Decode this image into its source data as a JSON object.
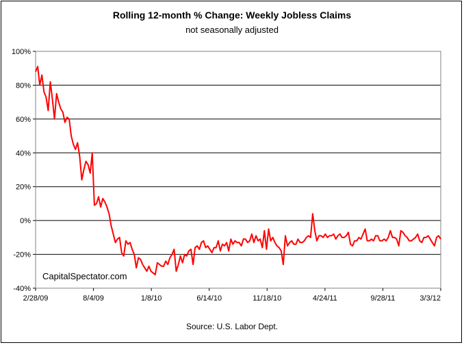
{
  "chart_data": {
    "type": "line",
    "title": "Rolling 12-month %  Change: Weekly Jobless Claims",
    "subtitle": "not seasonally adjusted",
    "source": "Source: U.S. Labor Dept.",
    "watermark": "CapitalSpectator.com",
    "xlabel": "",
    "ylabel": "",
    "ylim": [
      -40,
      100
    ],
    "y_ticks": [
      100,
      80,
      60,
      40,
      20,
      0,
      -20,
      -40
    ],
    "y_tick_labels": [
      "100%",
      "80%",
      "60%",
      "40%",
      "20%",
      "0%",
      "-20%",
      "-40%"
    ],
    "x_tick_labels": [
      "2/28/09",
      "8/4/09",
      "1/8/10",
      "6/14/10",
      "11/18/10",
      "4/24/11",
      "9/28/11",
      "3/3/12"
    ],
    "grid": true,
    "line_color": "#ff0000",
    "series": [
      {
        "values": [
          88,
          91,
          80,
          86,
          76,
          73,
          65,
          82,
          72,
          60,
          75,
          70,
          66,
          64,
          58,
          61,
          60,
          50,
          45,
          42,
          46,
          38,
          24,
          30,
          35,
          33,
          28,
          40,
          9,
          10,
          14,
          8,
          13,
          11,
          8,
          4,
          -3,
          -8,
          -13,
          -11,
          -10,
          -19,
          -21,
          -12,
          -14,
          -13,
          -17,
          -20,
          -28,
          -22,
          -23,
          -26,
          -28,
          -30,
          -27,
          -30,
          -31,
          -32,
          -25,
          -26,
          -27,
          -27,
          -24,
          -26,
          -22,
          -20,
          -17,
          -30,
          -26,
          -21,
          -25,
          -20,
          -21,
          -18,
          -17,
          -26,
          -16,
          -15,
          -17,
          -13,
          -12,
          -16,
          -15,
          -17,
          -19,
          -16,
          -16,
          -12,
          -18,
          -14,
          -15,
          -13,
          -18,
          -11,
          -14,
          -12,
          -13,
          -13,
          -15,
          -11,
          -11,
          -13,
          -12,
          -8,
          -13,
          -9,
          -12,
          -11,
          -16,
          -6,
          -17,
          -5,
          -12,
          -10,
          -13,
          -15,
          -16,
          -18,
          -26,
          -9,
          -15,
          -13,
          -12,
          -14,
          -14,
          -11,
          -13,
          -13,
          -12,
          -10,
          -9,
          -10,
          4,
          -6,
          -12,
          -9,
          -9,
          -10,
          -8,
          -10,
          -9,
          -9,
          -8,
          -11,
          -9,
          -8,
          -10,
          -10,
          -9,
          -7,
          -14,
          -15,
          -12,
          -12,
          -10,
          -11,
          -8,
          -5,
          -12,
          -12,
          -11,
          -12,
          -9,
          -9,
          -12,
          -12,
          -11,
          -12,
          -10,
          -6,
          -10,
          -10,
          -11,
          -15,
          -6,
          -7,
          -9,
          -10,
          -12,
          -12,
          -11,
          -10,
          -8,
          -12,
          -13,
          -10,
          -10,
          -9,
          -11,
          -13,
          -15,
          -10,
          -9,
          -11
        ]
      }
    ]
  }
}
